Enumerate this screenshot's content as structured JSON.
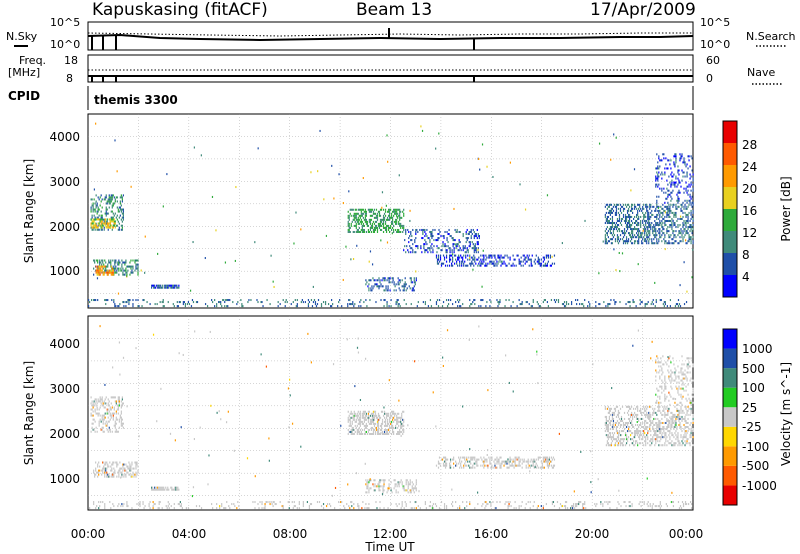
{
  "header": {
    "station": "Kapuskasing (fitACF)",
    "beam": "Beam 13",
    "date": "17/Apr/2009"
  },
  "strips": {
    "nsky_label": "N.Sky",
    "nsearch_label": "N.Search",
    "nsky_ticks": [
      "10^5",
      "10^0"
    ],
    "nsearch_ticks": [
      "10^5",
      "10^0"
    ],
    "freq_label_1": "Freq.",
    "freq_label_2": "[MHz]",
    "freq_ticks": [
      "18",
      "8"
    ],
    "nave_label": "Nave",
    "nave_ticks": [
      "60",
      "0"
    ],
    "cpid_label": "CPID",
    "cpid_value": "themis 3300"
  },
  "axes": {
    "ylabel": "Slant Range [km]",
    "xlabel": "Time UT",
    "yticks": [
      "1000",
      "2000",
      "3000",
      "4000"
    ],
    "xticks": [
      "00:00",
      "04:00",
      "08:00",
      "12:00",
      "16:00",
      "20:00",
      "00:00"
    ]
  },
  "colorbars": {
    "power": {
      "title": "Power [dB]",
      "ticks": [
        "4",
        "8",
        "12",
        "16",
        "20",
        "24",
        "28"
      ],
      "colors": [
        "#0000ff",
        "#1f4fa8",
        "#3f8a7a",
        "#2eaa3a",
        "#e8d020",
        "#ff9a00",
        "#ff5a00",
        "#e80000"
      ]
    },
    "velocity": {
      "title": "Velocity [m s^-1]",
      "ticks": [
        "1000",
        "500",
        "100",
        "25",
        "-25",
        "-100",
        "-500",
        "-1000"
      ],
      "colors": [
        "#0000ff",
        "#1f4fa8",
        "#3f8a7a",
        "#22cc22",
        "#c8c8c8",
        "#ffd700",
        "#ff9a00",
        "#ff5a00",
        "#e80000"
      ]
    }
  },
  "chart_data": {
    "type": "heatmap",
    "title": "Kapuskasing (fitACF) Beam 13 17/Apr/2009",
    "xlabel": "Time UT",
    "ylabel": "Slant Range [km]",
    "xlim_hours": [
      0,
      24
    ],
    "ylim_km": [
      180,
      4500
    ],
    "grid": true,
    "panels": [
      {
        "name": "Power [dB]",
        "colorbar_range": [
          0,
          32
        ],
        "regions": [
          {
            "t_start": 0.1,
            "t_end": 1.4,
            "r_start": 1900,
            "r_end": 2700,
            "mean_value": 10,
            "density": 0.35
          },
          {
            "t_start": 0.1,
            "t_end": 1.1,
            "r_start": 1950,
            "r_end": 2150,
            "mean_value": 18,
            "density": 0.6
          },
          {
            "t_start": 0.2,
            "t_end": 2.0,
            "r_start": 900,
            "r_end": 1250,
            "mean_value": 10,
            "density": 0.4
          },
          {
            "t_start": 0.3,
            "t_end": 1.0,
            "r_start": 900,
            "r_end": 1100,
            "mean_value": 22,
            "density": 0.5
          },
          {
            "t_start": 2.5,
            "t_end": 3.6,
            "r_start": 610,
            "r_end": 680,
            "mean_value": 6,
            "density": 0.8
          },
          {
            "t_start": 10.3,
            "t_end": 12.5,
            "r_start": 1850,
            "r_end": 2350,
            "mean_value": 12,
            "density": 0.5
          },
          {
            "t_start": 12.5,
            "t_end": 15.5,
            "r_start": 1400,
            "r_end": 1900,
            "mean_value": 6,
            "density": 0.25
          },
          {
            "t_start": 13.8,
            "t_end": 18.5,
            "r_start": 1100,
            "r_end": 1350,
            "mean_value": 5,
            "density": 0.35
          },
          {
            "t_start": 11.0,
            "t_end": 13.0,
            "r_start": 550,
            "r_end": 850,
            "mean_value": 7,
            "density": 0.3
          },
          {
            "t_start": 20.5,
            "t_end": 24.0,
            "r_start": 1600,
            "r_end": 2500,
            "mean_value": 8,
            "density": 0.4
          },
          {
            "t_start": 22.5,
            "t_end": 24.0,
            "r_start": 2500,
            "r_end": 3600,
            "mean_value": 5,
            "density": 0.2
          },
          {
            "t_start": 0.0,
            "t_end": 24.0,
            "r_start": 200,
            "r_end": 350,
            "mean_value": 8,
            "density": 0.15
          }
        ]
      },
      {
        "name": "Velocity [m s^-1]",
        "colorbar_range": [
          -1000,
          1000
        ],
        "regions": [
          {
            "t_start": 0.1,
            "t_end": 1.4,
            "r_start": 1900,
            "r_end": 2700,
            "mean_value": 0,
            "density": 0.35
          },
          {
            "t_start": 0.2,
            "t_end": 2.0,
            "r_start": 900,
            "r_end": 1250,
            "mean_value": 0,
            "density": 0.4
          },
          {
            "t_start": 2.5,
            "t_end": 3.6,
            "r_start": 610,
            "r_end": 680,
            "mean_value": 0,
            "density": 0.8
          },
          {
            "t_start": 10.3,
            "t_end": 12.5,
            "r_start": 1850,
            "r_end": 2350,
            "mean_value": 0,
            "density": 0.5
          },
          {
            "t_start": 13.8,
            "t_end": 18.5,
            "r_start": 1100,
            "r_end": 1350,
            "mean_value": 0,
            "density": 0.35
          },
          {
            "t_start": 11.0,
            "t_end": 13.0,
            "r_start": 550,
            "r_end": 850,
            "mean_value": 0,
            "density": 0.3
          },
          {
            "t_start": 20.5,
            "t_end": 24.0,
            "r_start": 1600,
            "r_end": 2500,
            "mean_value": 0,
            "density": 0.4
          },
          {
            "t_start": 22.5,
            "t_end": 24.0,
            "r_start": 2500,
            "r_end": 3600,
            "mean_value": 0,
            "density": 0.2
          },
          {
            "t_start": 0.0,
            "t_end": 24.0,
            "r_start": 200,
            "r_end": 350,
            "mean_value": 0,
            "density": 0.15
          }
        ]
      }
    ]
  }
}
